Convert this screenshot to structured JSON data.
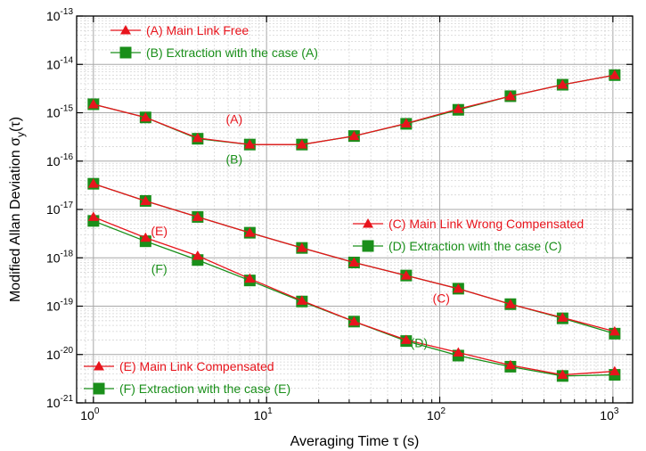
{
  "chart_data": {
    "type": "line",
    "title": "",
    "xlabel": "Averaging Time τ (s)",
    "ylabel": "Modified Allan Deviation σ",
    "ylabel_sub": "y",
    "ylabel_suffix": "(τ)",
    "x_scale": "log",
    "y_scale": "log",
    "xlim": [
      0.8,
      1300
    ],
    "ylim": [
      1e-21,
      1e-13
    ],
    "grid": true,
    "x_ticks": [
      {
        "value": 1,
        "base": "10",
        "exp": "0"
      },
      {
        "value": 10,
        "base": "10",
        "exp": "1"
      },
      {
        "value": 100,
        "base": "10",
        "exp": "2"
      },
      {
        "value": 1000,
        "base": "10",
        "exp": "3"
      }
    ],
    "y_ticks": [
      {
        "value": 1e-21,
        "base": "10",
        "exp": "-21"
      },
      {
        "value": 1e-20,
        "base": "10",
        "exp": "-20"
      },
      {
        "value": 1e-19,
        "base": "10",
        "exp": "-19"
      },
      {
        "value": 1e-18,
        "base": "10",
        "exp": "-18"
      },
      {
        "value": 1e-17,
        "base": "10",
        "exp": "-17"
      },
      {
        "value": 1e-16,
        "base": "10",
        "exp": "-16"
      },
      {
        "value": 1e-15,
        "base": "10",
        "exp": "-15"
      },
      {
        "value": 1e-14,
        "base": "10",
        "exp": "-14"
      },
      {
        "value": 1e-13,
        "base": "10",
        "exp": "-13"
      }
    ],
    "series": [
      {
        "name": "(A) Main Link Free",
        "color": "#e8141c",
        "marker": "triangle",
        "x": [
          1,
          2,
          4,
          8,
          16,
          32,
          64,
          128,
          256,
          512,
          1024
        ],
        "y": [
          1.5e-15,
          8e-16,
          3e-16,
          2.2e-16,
          2.2e-16,
          3.3e-16,
          6e-16,
          1.2e-15,
          2.2e-15,
          3.8e-15,
          6e-15
        ]
      },
      {
        "name": "(B) Extraction with the case (A)",
        "color": "#1a8f1a",
        "marker": "square",
        "x": [
          1,
          2,
          4,
          8,
          16,
          32,
          64,
          128,
          256,
          512,
          1024
        ],
        "y": [
          1.5e-15,
          8e-16,
          2.9e-16,
          2.2e-16,
          2.2e-16,
          3.3e-16,
          5.9e-16,
          1.15e-15,
          2.2e-15,
          3.8e-15,
          6e-15
        ]
      },
      {
        "name": "(C) Main Link Wrong Compensated",
        "color": "#e8141c",
        "marker": "triangle",
        "x": [
          1,
          2,
          4,
          8,
          16,
          32,
          64,
          128,
          256,
          512,
          1024
        ],
        "y": [
          3.4e-17,
          1.5e-17,
          7e-18,
          3.3e-18,
          1.6e-18,
          8e-19,
          4.3e-19,
          2.3e-19,
          1.1e-19,
          5.8e-20,
          3e-20
        ]
      },
      {
        "name": "(D) Extraction with the case (C)",
        "color": "#1a8f1a",
        "marker": "square",
        "x": [
          1,
          2,
          4,
          8,
          16,
          32,
          64,
          128,
          256,
          512,
          1024
        ],
        "y": [
          3.4e-17,
          1.5e-17,
          7e-18,
          3.3e-18,
          1.6e-18,
          8e-19,
          4.3e-19,
          2.3e-19,
          1.1e-19,
          5.6e-20,
          2.7e-20
        ]
      },
      {
        "name": "(E) Main Link Compensated",
        "color": "#e8141c",
        "marker": "triangle",
        "x": [
          1,
          2,
          4,
          8,
          16,
          32,
          64,
          128,
          256,
          512,
          1024
        ],
        "y": [
          7e-18,
          2.6e-18,
          1.1e-18,
          3.7e-19,
          1.3e-19,
          4.8e-20,
          2e-20,
          1.1e-20,
          6e-21,
          3.8e-21,
          4.5e-21
        ]
      },
      {
        "name": "(F) Extraction with the case (E)",
        "color": "#1a8f1a",
        "marker": "square",
        "x": [
          1,
          2,
          4,
          8,
          16,
          32,
          64,
          128,
          256,
          512,
          1024
        ],
        "y": [
          5.8e-18,
          2.2e-18,
          9e-19,
          3.4e-19,
          1.25e-19,
          4.8e-20,
          1.9e-20,
          9.5e-21,
          5.6e-21,
          3.6e-21,
          3.8e-21
        ]
      }
    ],
    "legends": [
      {
        "entries": [
          0,
          1
        ],
        "placement": "top-left"
      },
      {
        "entries": [
          2,
          3
        ],
        "placement": "center-right"
      },
      {
        "entries": [
          4,
          5
        ],
        "placement": "bottom-left"
      }
    ],
    "annotations": [
      {
        "text": "(A)",
        "color": "#e8141c",
        "x": 6.5,
        "y": 7.5e-16
      },
      {
        "text": "(B)",
        "color": "#1a8f1a",
        "x": 6.5,
        "y": 1.1e-16
      },
      {
        "text": "(E)",
        "color": "#e8141c",
        "x": 2.4,
        "y": 3.6e-18
      },
      {
        "text": "(F)",
        "color": "#1a8f1a",
        "x": 2.4,
        "y": 6e-19
      },
      {
        "text": "(C)",
        "color": "#e8141c",
        "x": 102,
        "y": 1.45e-19
      },
      {
        "text": "(D)",
        "color": "#1a8f1a",
        "x": 76,
        "y": 1.75e-20
      }
    ]
  }
}
